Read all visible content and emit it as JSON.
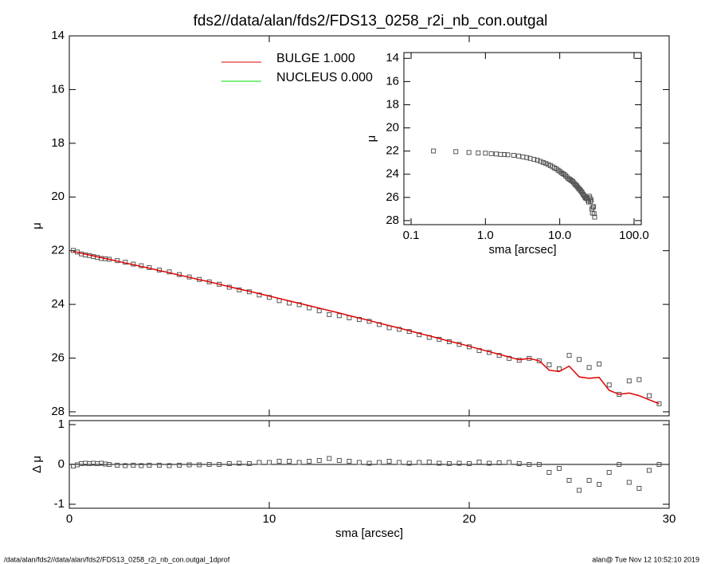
{
  "title": "fds2//data/alan/fds2/FDS13_0258_r2i_nb_con.outgal",
  "footer_left": "/data/alan/fds2//data/alan/fds2/FDS13_0258_r2i_nb_con.outgal_1dprof",
  "footer_right": "alan@  Tue Nov 12 10:52:10 2019",
  "chart_data": [
    {
      "type": "line",
      "ylabel": "μ",
      "xlim": [
        0,
        30
      ],
      "xticks": [
        0,
        10,
        20,
        30
      ],
      "xtick_labels": false,
      "ylim": [
        14,
        28.15
      ],
      "y_inverted": true,
      "yticks": [
        14,
        16,
        18,
        20,
        22,
        24,
        26,
        28
      ],
      "x": [
        0.2,
        0.4,
        0.6,
        0.8,
        1.0,
        1.2,
        1.4,
        1.6,
        1.8,
        2.0,
        2.4,
        2.8,
        3.2,
        3.6,
        4.0,
        4.5,
        5.0,
        5.5,
        6.0,
        6.5,
        7.0,
        7.5,
        8.0,
        8.5,
        9.0,
        9.5,
        10.0,
        10.5,
        11.0,
        11.5,
        12.0,
        12.5,
        13.0,
        13.5,
        14.0,
        14.5,
        15.0,
        15.5,
        16.0,
        16.5,
        17.0,
        17.5,
        18.0,
        18.5,
        19.0,
        19.5,
        20.0,
        20.5,
        21.0,
        21.5,
        22.0,
        22.5,
        23.0,
        23.5,
        24.0,
        24.5,
        25.0,
        25.5,
        26.0,
        26.5,
        27.0,
        27.5,
        28.0,
        28.5,
        29.0,
        29.5
      ],
      "series": [
        {
          "color": "#555555",
          "marker": "square",
          "values": [
            21.99,
            22.05,
            22.12,
            22.16,
            22.18,
            22.22,
            22.25,
            22.29,
            22.3,
            22.32,
            22.37,
            22.43,
            22.5,
            22.56,
            22.63,
            22.72,
            22.79,
            22.89,
            22.98,
            23.07,
            23.16,
            23.25,
            23.36,
            23.46,
            23.53,
            23.65,
            23.74,
            23.86,
            23.95,
            24.01,
            24.13,
            24.24,
            24.38,
            24.42,
            24.5,
            24.56,
            24.63,
            24.75,
            24.87,
            24.93,
            25.01,
            25.13,
            25.23,
            25.3,
            25.39,
            25.49,
            25.58,
            25.72,
            25.79,
            25.9,
            26.01,
            26.08,
            26.01,
            26.1,
            26.25,
            26.4,
            25.9,
            26.05,
            26.35,
            26.22,
            27.0,
            27.35,
            26.85,
            26.8,
            27.4,
            27.7
          ]
        },
        {
          "name": "BULGE  1.000",
          "color": "#e00000",
          "values": [
            22.03,
            22.06,
            22.1,
            22.13,
            22.16,
            22.19,
            22.23,
            22.26,
            22.29,
            22.32,
            22.39,
            22.46,
            22.52,
            22.59,
            22.65,
            22.74,
            22.82,
            22.91,
            22.99,
            23.08,
            23.16,
            23.25,
            23.34,
            23.43,
            23.51,
            23.6,
            23.69,
            23.78,
            23.87,
            23.96,
            24.05,
            24.14,
            24.23,
            24.32,
            24.42,
            24.51,
            24.6,
            24.7,
            24.79,
            24.88,
            24.98,
            25.08,
            25.17,
            25.27,
            25.37,
            25.46,
            25.56,
            25.66,
            25.76,
            25.86,
            25.96,
            26.06,
            26.01,
            26.1,
            26.45,
            26.5,
            26.3,
            26.7,
            26.75,
            26.72,
            27.2,
            27.35,
            27.3,
            27.4,
            27.55,
            27.7
          ]
        }
      ],
      "extra_legend": [
        {
          "name": "NUCLEUS  0.000",
          "color": "#00dd00"
        }
      ]
    },
    {
      "type": "scatter",
      "xlabel": "sma [arcsec]",
      "ylabel": "Δ μ",
      "xlim": [
        0,
        30
      ],
      "xticks": [
        0,
        10,
        20,
        30
      ],
      "ylim": [
        -1.1,
        1.1
      ],
      "yticks": [
        -1,
        0,
        1
      ],
      "zero_line": true,
      "x": [
        0.2,
        0.4,
        0.6,
        0.8,
        1.0,
        1.2,
        1.4,
        1.6,
        1.8,
        2.0,
        2.4,
        2.8,
        3.2,
        3.6,
        4.0,
        4.5,
        5.0,
        5.5,
        6.0,
        6.5,
        7.0,
        7.5,
        8.0,
        8.5,
        9.0,
        9.5,
        10.0,
        10.5,
        11.0,
        11.5,
        12.0,
        12.5,
        13.0,
        13.5,
        14.0,
        14.5,
        15.0,
        15.5,
        16.0,
        16.5,
        17.0,
        17.5,
        18.0,
        18.5,
        19.0,
        19.5,
        20.0,
        20.5,
        21.0,
        21.5,
        22.0,
        22.5,
        23.0,
        23.5,
        24.0,
        24.5,
        25.0,
        25.5,
        26.0,
        26.5,
        27.0,
        27.5,
        28.0,
        28.5,
        29.0,
        29.5
      ],
      "series": [
        {
          "color": "#555555",
          "marker": "square",
          "values": [
            -0.04,
            -0.01,
            0.02,
            0.03,
            0.02,
            0.03,
            0.02,
            0.03,
            0.01,
            0.0,
            -0.02,
            -0.03,
            -0.02,
            -0.03,
            -0.02,
            -0.02,
            -0.03,
            -0.02,
            -0.01,
            -0.01,
            0.0,
            0.0,
            0.02,
            0.03,
            0.02,
            0.05,
            0.05,
            0.08,
            0.08,
            0.05,
            0.08,
            0.1,
            0.15,
            0.1,
            0.08,
            0.05,
            0.03,
            0.05,
            0.08,
            0.05,
            0.03,
            0.05,
            0.06,
            0.03,
            0.02,
            0.03,
            0.02,
            0.06,
            0.03,
            0.04,
            0.05,
            0.02,
            0.0,
            0.0,
            -0.2,
            -0.1,
            -0.4,
            -0.65,
            -0.4,
            -0.5,
            -0.2,
            0.0,
            -0.45,
            -0.6,
            -0.15,
            0.0
          ]
        }
      ]
    },
    {
      "type": "scatter",
      "xlabel": "sma [arcsec]",
      "ylabel": "μ",
      "log_x": true,
      "xlim": [
        0.08,
        125
      ],
      "xticks": [
        0.1,
        {
          "value": 1,
          "label": "1.0"
        },
        {
          "value": 10,
          "label": "10.0"
        },
        {
          "value": 100,
          "label": "100.0"
        }
      ],
      "ylim": [
        13.5,
        28.35
      ],
      "y_inverted": true,
      "yticks": [
        14,
        16,
        18,
        20,
        22,
        24,
        26,
        28
      ],
      "x": [
        0.2,
        0.4,
        0.6,
        0.8,
        1.0,
        1.2,
        1.4,
        1.6,
        1.8,
        2.0,
        2.4,
        2.8,
        3.2,
        3.6,
        4.0,
        4.5,
        5.0,
        5.5,
        6.0,
        6.5,
        7.0,
        7.5,
        8.0,
        8.5,
        9.0,
        9.5,
        10.0,
        10.5,
        11.0,
        11.5,
        12.0,
        12.5,
        13.0,
        13.5,
        14.0,
        14.5,
        15.0,
        15.5,
        16.0,
        16.5,
        17.0,
        17.5,
        18.0,
        18.5,
        19.0,
        19.5,
        20.0,
        20.5,
        21.0,
        21.5,
        22.0,
        22.5,
        23.0,
        23.5,
        24.0,
        24.5,
        25.0,
        25.5,
        26.0,
        26.5,
        27.0,
        27.5,
        28.0,
        28.5,
        29.0,
        29.5
      ],
      "series": [
        {
          "color": "#555555",
          "marker": "square",
          "values": [
            21.99,
            22.05,
            22.12,
            22.16,
            22.18,
            22.22,
            22.25,
            22.29,
            22.3,
            22.32,
            22.37,
            22.43,
            22.5,
            22.56,
            22.63,
            22.72,
            22.79,
            22.89,
            22.98,
            23.07,
            23.16,
            23.25,
            23.36,
            23.46,
            23.53,
            23.65,
            23.74,
            23.86,
            23.95,
            24.01,
            24.13,
            24.24,
            24.38,
            24.42,
            24.5,
            24.56,
            24.63,
            24.75,
            24.87,
            24.93,
            25.01,
            25.13,
            25.23,
            25.3,
            25.39,
            25.49,
            25.58,
            25.72,
            25.79,
            25.9,
            26.01,
            26.08,
            26.01,
            26.1,
            26.25,
            26.4,
            25.9,
            26.05,
            26.35,
            26.22,
            27.0,
            27.35,
            26.85,
            26.8,
            27.4,
            27.7
          ]
        }
      ]
    }
  ]
}
